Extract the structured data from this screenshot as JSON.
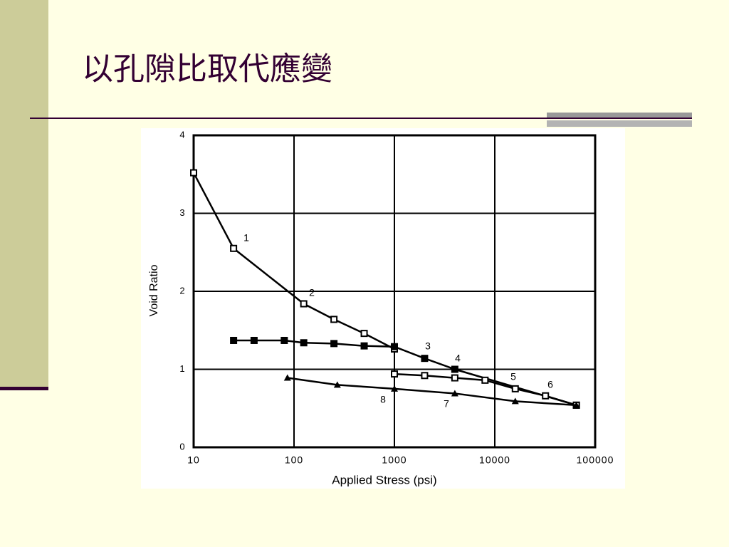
{
  "slide_title": "以孔隙比取代應變",
  "chart_data": {
    "type": "line",
    "x_label": "Applied Stress (psi)",
    "y_label": "Void Ratio",
    "xlim": [
      10,
      100000
    ],
    "ylim": [
      0,
      4
    ],
    "xscale": "log",
    "xticks": [
      10,
      100,
      1000,
      10000,
      100000
    ],
    "yticks": [
      0,
      1,
      2,
      3,
      4
    ],
    "grid": true,
    "series": [
      {
        "color": "#000000",
        "marker": "square-open",
        "x": [
          10,
          25,
          125,
          250,
          500,
          1000
        ],
        "values": [
          3.52,
          2.55,
          1.84,
          1.64,
          1.46,
          1.26
        ]
      },
      {
        "color": "#000000",
        "marker": "square-filled",
        "x": [
          25,
          40,
          80,
          125,
          250,
          500,
          1000,
          2000,
          4000,
          65000
        ],
        "values": [
          1.37,
          1.37,
          1.37,
          1.34,
          1.33,
          1.3,
          1.29,
          1.14,
          1.0,
          0.54
        ]
      },
      {
        "color": "#000000",
        "marker": "square-open",
        "x": [
          1000,
          2000,
          4000,
          8000,
          16000,
          32000,
          65000
        ],
        "values": [
          0.94,
          0.92,
          0.89,
          0.86,
          0.75,
          0.66,
          0.54
        ]
      },
      {
        "color": "#000000",
        "marker": "triangle",
        "x": [
          86,
          270,
          1000,
          4000,
          16000,
          65000
        ],
        "values": [
          0.89,
          0.8,
          0.75,
          0.69,
          0.59,
          0.54
        ]
      }
    ],
    "annotations": [
      "1",
      "2",
      "3",
      "4",
      "5",
      "6",
      "7",
      "8"
    ]
  }
}
